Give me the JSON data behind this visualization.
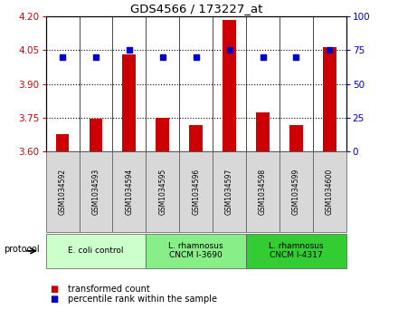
{
  "title": "GDS4566 / 173227_at",
  "samples": [
    "GSM1034592",
    "GSM1034593",
    "GSM1034594",
    "GSM1034595",
    "GSM1034596",
    "GSM1034597",
    "GSM1034598",
    "GSM1034599",
    "GSM1034600"
  ],
  "transformed_count": [
    3.675,
    3.745,
    4.03,
    3.75,
    3.715,
    4.185,
    3.775,
    3.715,
    4.065
  ],
  "percentile_rank": [
    70,
    70,
    75,
    70,
    70,
    75,
    70,
    70,
    75
  ],
  "ylim_left": [
    3.6,
    4.2
  ],
  "ylim_right": [
    0,
    100
  ],
  "yticks_left": [
    3.6,
    3.75,
    3.9,
    4.05,
    4.2
  ],
  "yticks_right": [
    0,
    25,
    50,
    75,
    100
  ],
  "hlines": [
    3.75,
    3.9,
    4.05
  ],
  "bar_color": "#cc0000",
  "dot_color": "#0000cc",
  "protocol_groups": [
    {
      "label": "E. coli control",
      "start": 0,
      "end": 3,
      "color": "#ccffcc"
    },
    {
      "label": "L. rhamnosus\nCNCM I-3690",
      "start": 3,
      "end": 6,
      "color": "#88ee88"
    },
    {
      "label": "L. rhamnosus\nCNCM I-4317",
      "start": 6,
      "end": 9,
      "color": "#33cc33"
    }
  ],
  "legend_bar_label": "transformed count",
  "legend_dot_label": "percentile rank within the sample",
  "protocol_label": "protocol",
  "sample_box_color": "#d8d8d8",
  "bar_width": 0.4
}
